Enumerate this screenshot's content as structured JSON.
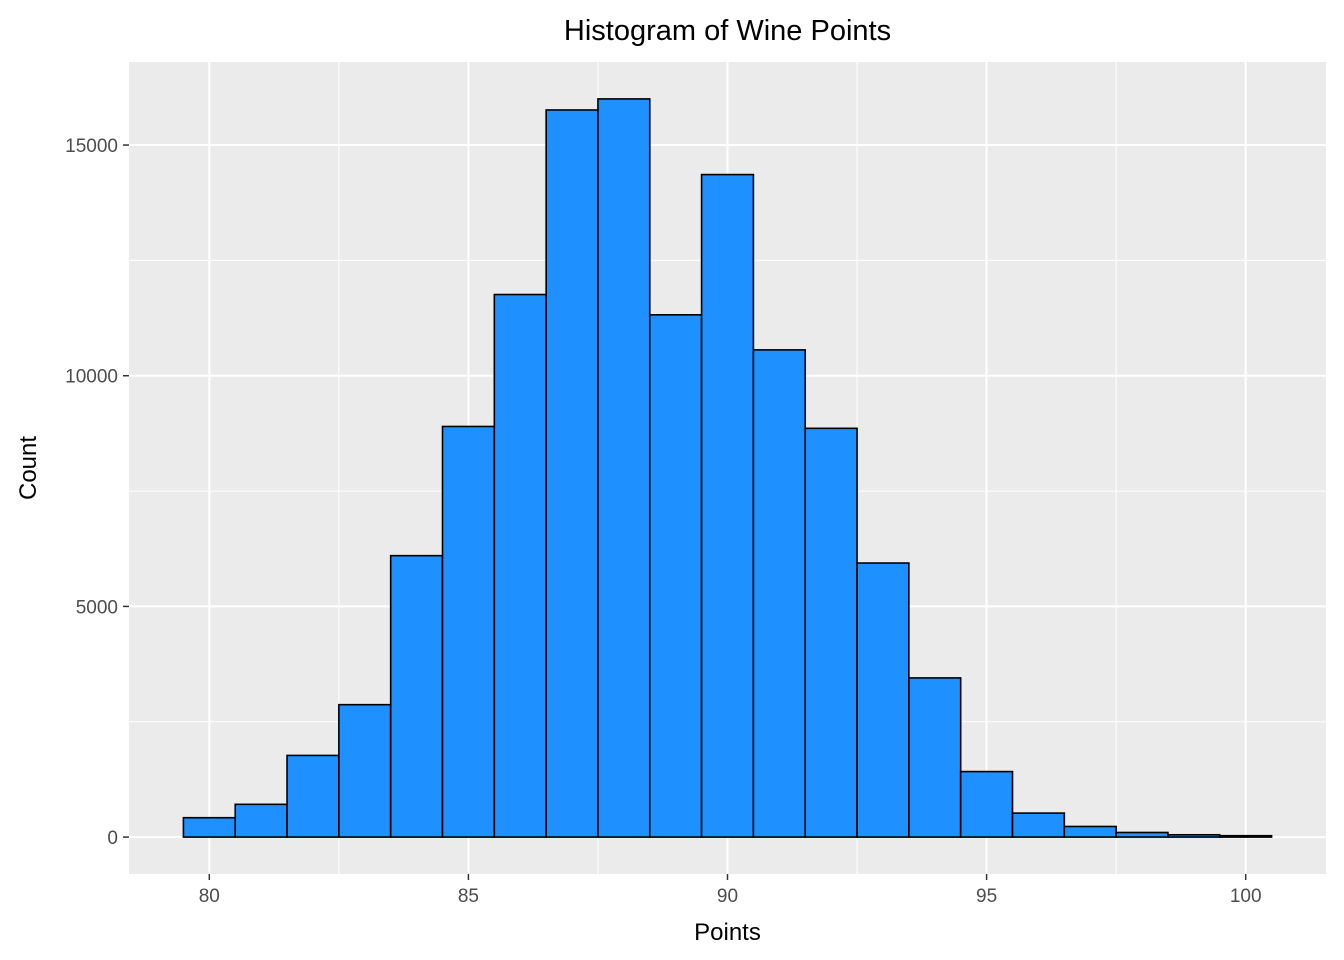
{
  "chart_data": {
    "type": "bar",
    "title": "Histogram of Wine Points",
    "xlabel": "Points",
    "ylabel": "Count",
    "x": [
      80,
      81,
      82,
      83,
      84,
      85,
      86,
      87,
      88,
      89,
      90,
      91,
      92,
      93,
      94,
      95,
      96,
      97,
      98,
      99,
      100
    ],
    "values": [
      420,
      710,
      1770,
      2870,
      6100,
      8900,
      11760,
      15760,
      16000,
      11320,
      14360,
      10560,
      8860,
      5940,
      3450,
      1420,
      520,
      230,
      100,
      50,
      30
    ],
    "bin_width": 1,
    "xlim": [
      78.45,
      101.55
    ],
    "ylim": [
      -800,
      16800
    ],
    "x_ticks": [
      80,
      85,
      90,
      95,
      100
    ],
    "x_tick_labels": [
      "80",
      "85",
      "90",
      "95",
      "100"
    ],
    "y_ticks": [
      0,
      5000,
      10000,
      15000
    ],
    "y_tick_labels": [
      "0",
      "5000",
      "10000",
      "15000"
    ],
    "grid": true,
    "legend": "none",
    "colors": {
      "bar_fill": "#1E90FF",
      "bar_outline": "#000000",
      "panel_background": "#EBEBEB",
      "grid": "#FFFFFF"
    }
  }
}
